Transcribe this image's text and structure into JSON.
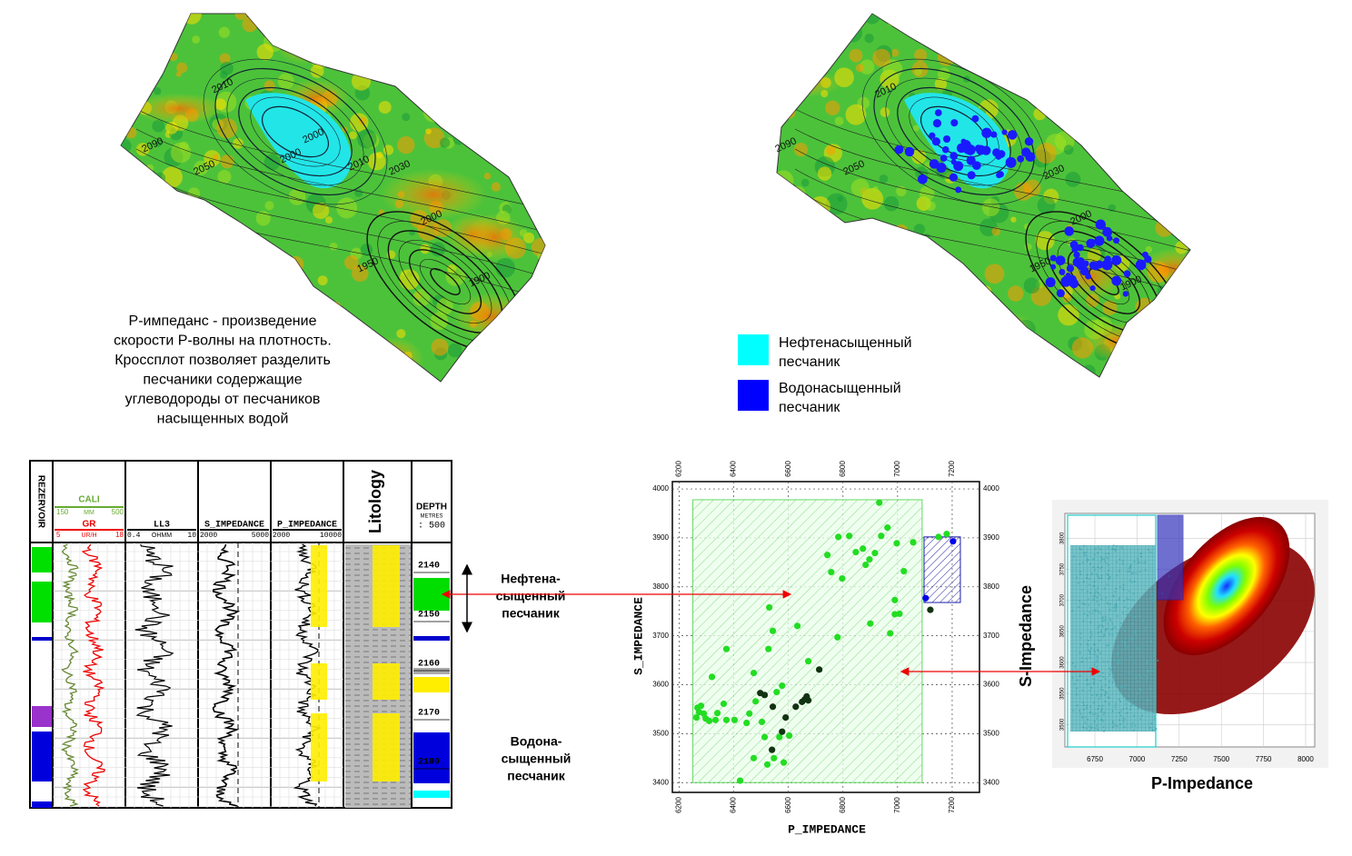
{
  "maps": {
    "left": {
      "contour_labels": [
        2010,
        2000,
        2090,
        2050,
        2000,
        2010,
        2030,
        2000,
        1950,
        1900
      ]
    },
    "right": {
      "contour_labels": [
        2010,
        2090,
        2050,
        2030,
        2000,
        1950,
        1900
      ]
    }
  },
  "description": [
    "Р-импеданс  - произведение",
    "скорости Р-волны на плотность.",
    "Кроссплот позволяет разделить",
    "песчаники содержащие",
    "углеводороды от песчаников",
    "насыщенных водой"
  ],
  "legend": [
    {
      "label": [
        "Нефтенасыщенный",
        "песчаник"
      ],
      "color": "#00ffff"
    },
    {
      "label": [
        "Водонасыщенный",
        "песчаник"
      ],
      "color": "#0000ff"
    }
  ],
  "well_log": {
    "reservoir": "REZERVOIR",
    "cali": {
      "name": "CALI",
      "min": 150,
      "unit": "MM",
      "max": 500
    },
    "gr": {
      "name": "GR",
      "min": 5,
      "unit": "UR/H",
      "max": 18
    },
    "ll3": {
      "name": "LL3",
      "min": 0.4,
      "unit": "OHMM",
      "max": 10
    },
    "s_imp": {
      "name": "S_IMPEDANCE",
      "min": 2000,
      "max": 5000
    },
    "p_imp": {
      "name": "P_IMPEDANCE",
      "min": 2000,
      "max": 10000
    },
    "litology": "Litology",
    "depth": {
      "name": "DEPTH",
      "unit": "METRES",
      "scale": ": 500",
      "ticks": [
        2140,
        2150,
        2160,
        2170,
        2180
      ]
    }
  },
  "annotations": {
    "oil": [
      "Нефтена-",
      "сыщенный",
      "песчаник"
    ],
    "water": [
      "Водона-",
      "сыщенный",
      "песчаник"
    ]
  },
  "chart_data": {
    "type": "scatter",
    "xlabel": "P_IMPEDANCE",
    "ylabel": "S_IMPEDANCE",
    "xlim": [
      6175,
      7300
    ],
    "ylim": [
      3380,
      4015
    ],
    "xticks": [
      6200,
      6400,
      6600,
      6800,
      7000,
      7200
    ],
    "yticks": [
      3400,
      3500,
      3600,
      3700,
      3800,
      3900,
      4000
    ],
    "regions": [
      {
        "x": [
          6250,
          7090
        ],
        "y": [
          3400,
          3978
        ],
        "color": "#33cc33"
      },
      {
        "x": [
          7097,
          7230
        ],
        "y": [
          3768,
          3902
        ],
        "color": "#1a1aaa"
      }
    ],
    "series": [
      {
        "color": "#22dd22",
        "x": [
          6933,
          6783,
          6743,
          6757,
          6797,
          6847,
          6873,
          6897,
          6917,
          6940,
          6963,
          6997,
          7023,
          7057,
          6883,
          6823,
          6990,
          7007,
          6990,
          6900,
          6973,
          6780,
          6633,
          6543,
          6530,
          6373,
          6527,
          6673,
          6473,
          6577,
          6320,
          6280,
          6267,
          6290,
          6273,
          6340,
          6363,
          6263,
          6297,
          6310,
          6333,
          6373,
          6403,
          6457,
          6447,
          6503,
          6557,
          6480,
          6513,
          6567,
          6603,
          6473,
          6547,
          6583,
          6523,
          6423,
          7150,
          7180
        ],
        "values": [
          3972,
          3902,
          3865,
          3830,
          3817,
          3871,
          3878,
          3856,
          3869,
          3904,
          3921,
          3889,
          3832,
          3891,
          3845,
          3904,
          3773,
          3745,
          3744,
          3725,
          3705,
          3697,
          3720,
          3710,
          3758,
          3673,
          3673,
          3648,
          3624,
          3598,
          3616,
          3557,
          3553,
          3541,
          3544,
          3542,
          3561,
          3533,
          3531,
          3526,
          3528,
          3528,
          3528,
          3541,
          3522,
          3524,
          3585,
          3566,
          3493,
          3493,
          3496,
          3450,
          3450,
          3441,
          3437,
          3404,
          3902,
          3908
        ]
      },
      {
        "color": "#0000ee",
        "x": [
          7203,
          7103
        ],
        "values": [
          3893,
          3777
        ]
      },
      {
        "color": "#113311",
        "x": [
          7120,
          6497,
          6513,
          6543,
          6590,
          6627,
          6650,
          6667,
          6673,
          6660,
          6713,
          6577,
          6540
        ],
        "values": [
          3753,
          3583,
          3579,
          3555,
          3533,
          3555,
          3565,
          3576,
          3568,
          3570,
          3631,
          3504,
          3467
        ]
      }
    ]
  },
  "density_plot": {
    "xlabel": "P-Impedance",
    "ylabel": "S-Impedance",
    "xlim": [
      6572,
      8054
    ],
    "ylim": [
      3464,
      3840
    ],
    "xticks": [
      6750,
      7000,
      7250,
      7500,
      7750,
      8000
    ],
    "yticks": [
      3500,
      3550,
      3600,
      3650,
      3700,
      3750,
      3800
    ]
  }
}
